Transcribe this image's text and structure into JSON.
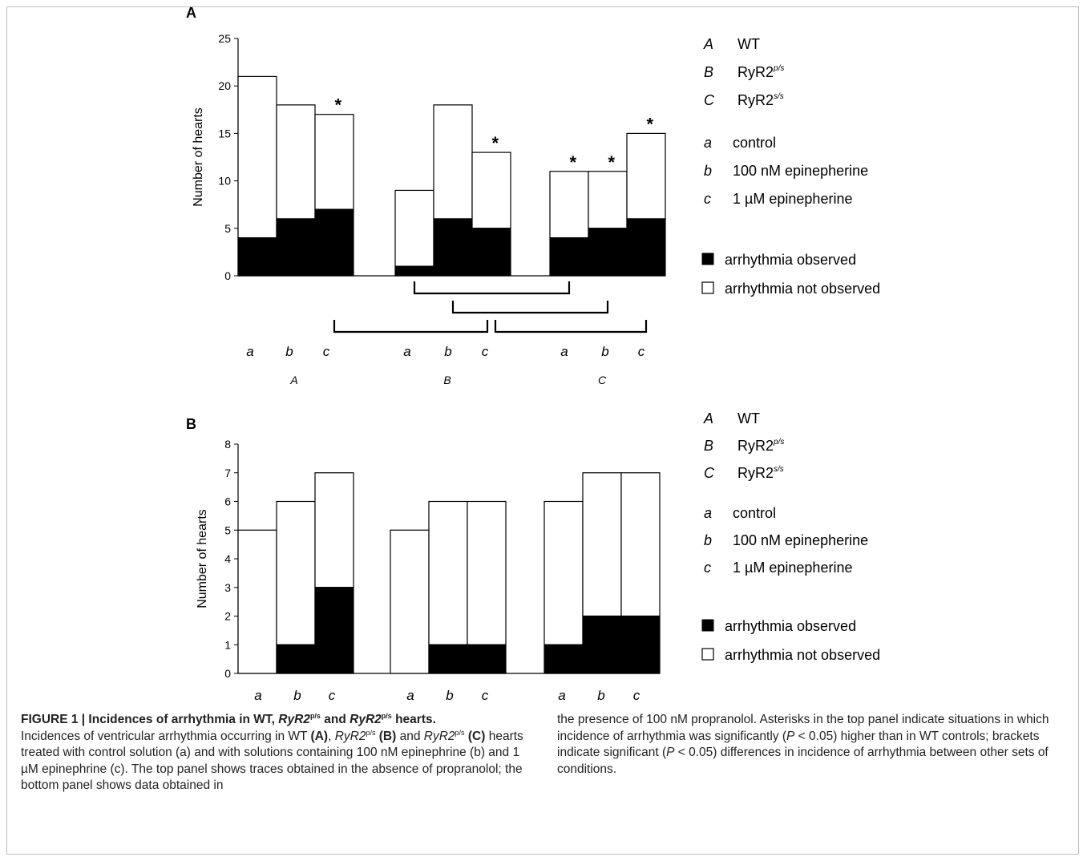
{
  "chart_data": [
    {
      "panel": "A",
      "type": "bar",
      "stacked": true,
      "ylabel": "Number of hearts",
      "ylim": [
        0,
        25
      ],
      "yticks": [
        0,
        5,
        10,
        15,
        20,
        25
      ],
      "categories": [
        "a",
        "b",
        "c",
        "a",
        "b",
        "c",
        "a",
        "b",
        "c"
      ],
      "groups": [
        "A",
        "B",
        "C"
      ],
      "totals": [
        21,
        18,
        17,
        9,
        18,
        13,
        11,
        11,
        15
      ],
      "series": [
        {
          "name": "arrhythmia observed",
          "values": [
            4,
            6,
            7,
            1,
            6,
            5,
            4,
            5,
            6
          ]
        },
        {
          "name": "arrhythmia not observed",
          "values": [
            17,
            12,
            10,
            8,
            12,
            8,
            7,
            6,
            9
          ]
        }
      ],
      "significant": [
        false,
        false,
        true,
        false,
        false,
        true,
        true,
        true,
        true
      ],
      "asterisk": "*",
      "brackets": [
        [
          3,
          6
        ],
        [
          4,
          7
        ],
        [
          2,
          5
        ],
        [
          5,
          8
        ]
      ]
    },
    {
      "panel": "B",
      "type": "bar",
      "stacked": true,
      "ylabel": "Number of hearts",
      "ylim": [
        0,
        8
      ],
      "yticks": [
        0,
        1,
        2,
        3,
        4,
        5,
        6,
        7,
        8
      ],
      "categories": [
        "a",
        "b",
        "c",
        "a",
        "b",
        "c",
        "a",
        "b",
        "c"
      ],
      "groups": [
        "A",
        "B",
        "C"
      ],
      "totals": [
        5,
        6,
        7,
        5,
        6,
        6,
        6,
        7,
        7
      ],
      "series": [
        {
          "name": "arrhythmia observed",
          "values": [
            0,
            1,
            3,
            0,
            1,
            1,
            1,
            2,
            2
          ]
        },
        {
          "name": "arrhythmia not observed",
          "values": [
            5,
            5,
            4,
            5,
            5,
            5,
            5,
            5,
            5
          ]
        }
      ]
    }
  ],
  "legend": {
    "groups": [
      {
        "key": "A",
        "label": "WT",
        "sup": ""
      },
      {
        "key": "B",
        "label": "RyR2",
        "sup": "p/s"
      },
      {
        "key": "C",
        "label": "RyR2",
        "sup": "s/s"
      }
    ],
    "conditions": [
      {
        "key": "a",
        "label": "control"
      },
      {
        "key": "b",
        "label": "100 nM epinepherine"
      },
      {
        "key": "c",
        "label": "1 µM epinepherine"
      }
    ],
    "observed": "arrhythmia observed",
    "not_observed": "arrhythmia not observed"
  },
  "panel_labels": [
    "A",
    "B"
  ],
  "colors": {
    "observed": "#000000",
    "not_observed": "#ffffff",
    "frame": "#bdbdbd"
  },
  "caption": {
    "title_prefix": "FIGURE 1 | Incidences of arrhythmia in WT, ",
    "title_g1": "RyR2",
    "title_g1_sup": "p/s",
    "title_and": " and ",
    "title_g2": "RyR2",
    "title_g2_sup": "p/s",
    "title_suffix": " hearts.",
    "body_1": "Incidences of ventricular arrhythmia occurring in WT ",
    "body_1_ref": "(A)",
    "body_2": ", ",
    "body_2_g": "RyR2",
    "body_2_sup": "p/s",
    "body_2_ref": " (B)",
    "body_3": " and ",
    "body_3_g": "RyR2",
    "body_3_sup": "p/s",
    "body_3_ref": "(C)",
    "body_4": " hearts treated with control solution (a) and with solutions containing 100 nM epinephrine (b) and 1 µM epinephrine (c). The top panel shows traces obtained in the absence of propranolol; the bottom panel shows data obtained in",
    "right_1": "the presence of 100 nM propranolol. Asterisks in the top panel indicate situations in which incidence of arrhythmia was significantly (",
    "right_p1": "P",
    "right_2": " < 0.05) higher than in WT controls; brackets indicate significant (",
    "right_p2": "P",
    "right_3": " < 0.05) differences in incidence of arrhythmia between other sets of conditions."
  }
}
